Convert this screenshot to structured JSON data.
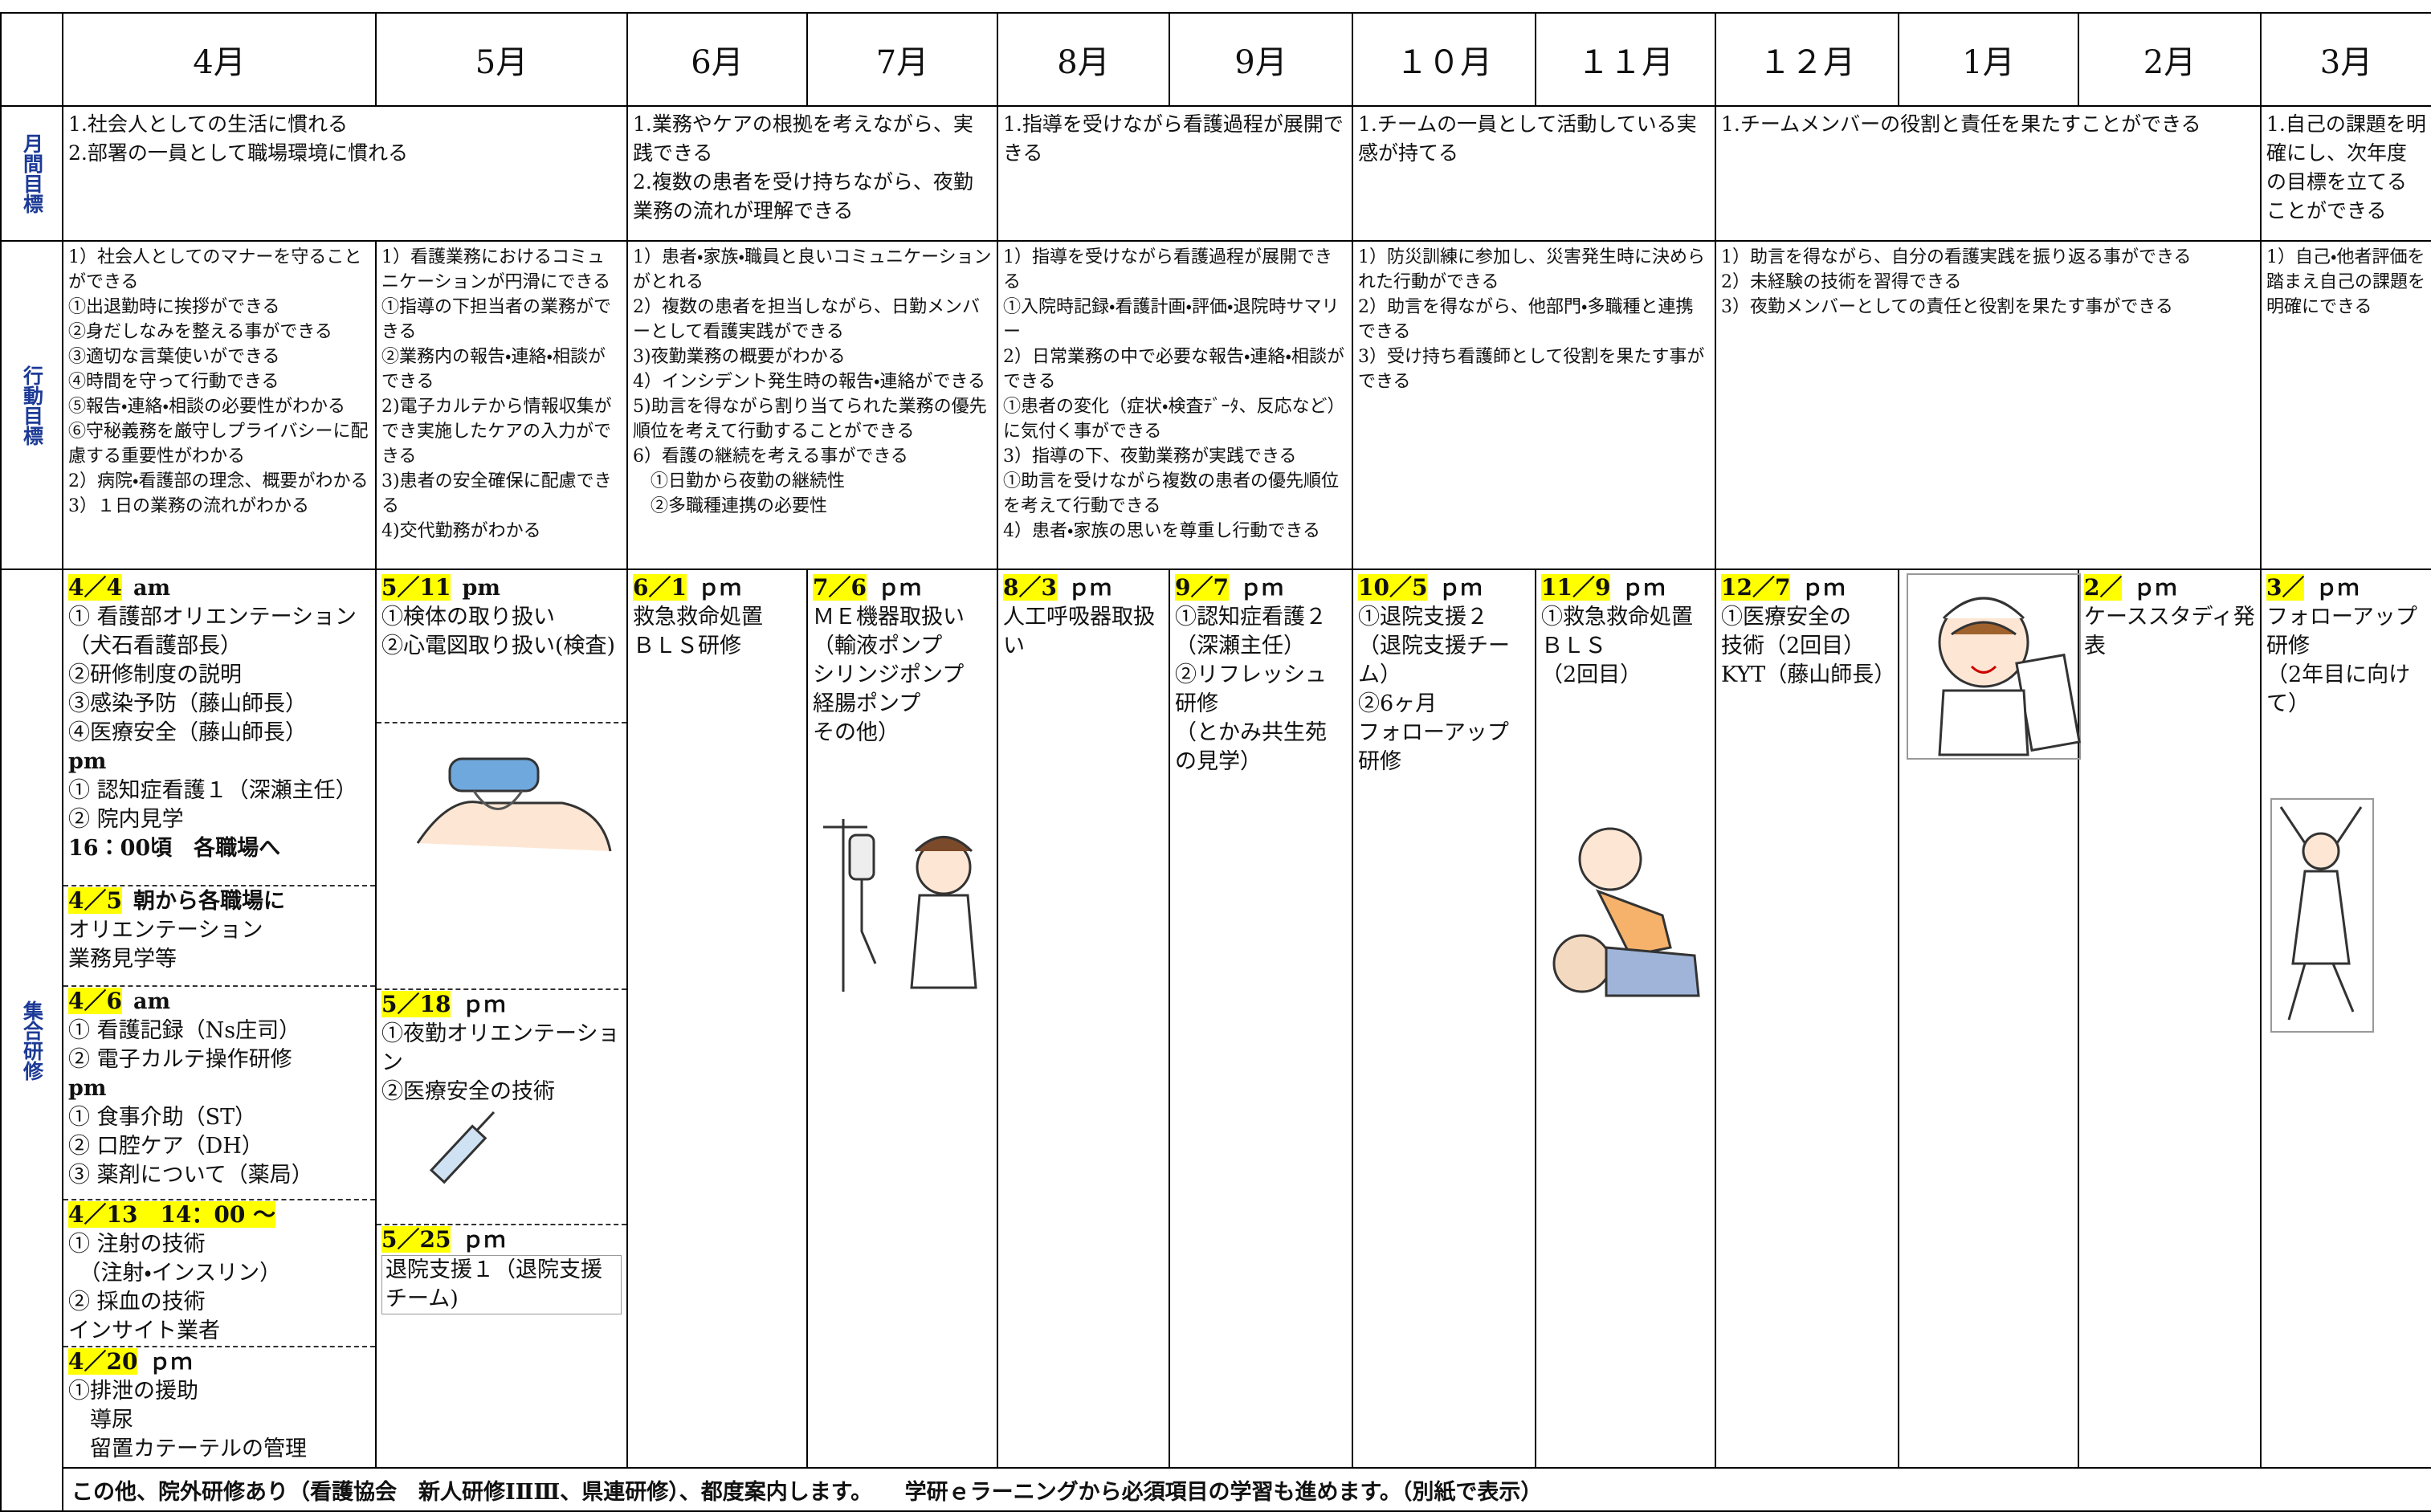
{
  "header": {
    "months": [
      "4月",
      "5月",
      "6月",
      "7月",
      "8月",
      "9月",
      "１０月",
      "１１月",
      "１２月",
      "1月",
      "2月",
      "3月"
    ]
  },
  "rows": {
    "monthly_goals": {
      "label": "月間目標",
      "cells": [
        [
          "1.社会人としての生活に慣れる",
          "2.部署の一員として職場環境に慣れる"
        ],
        [
          "1.業務やケアの根拠を考えながら、実践できる",
          "2.複数の患者を受け持ちながら、夜勤業務の流れが理解できる"
        ],
        [
          "1.指導を受けながら看護過程が展開できる"
        ],
        [
          "1.チームの一員として活動している実感が持てる"
        ],
        [
          "1.チームメンバーの役割と責任を果たすことができる"
        ],
        [
          "1.自己の課題を明確にし、次年度の目標を立てることができる"
        ]
      ]
    },
    "action_goals": {
      "label": "行動目標",
      "cells": [
        [
          "1）社会人としてのマナーを守ることができる",
          "①出退勤時に挨拶ができる",
          "②身だしなみを整える事ができる",
          "③適切な言葉使いができる",
          "④時間を守って行動できる",
          "⑤報告・連絡・相談の必要性がわかる",
          "⑥守秘義務を厳守しプライバシーに配慮する重要性がわかる",
          "2）病院・看護部の理念、概要がわかる",
          "3）１日の業務の流れがわかる"
        ],
        [
          "1）看護業務におけるコミュニケーションが円滑にできる",
          "①指導の下担当者の業務ができる",
          "②業務内の報告・連絡・相談ができる",
          "2)電子カルテから情報収集ができ実施したケアの入力ができる",
          "3)患者の安全確保に配慮できる",
          "4)交代勤務がわかる"
        ],
        [
          "1）患者・家族・職員と良いコミュニケーションがとれる",
          "2）複数の患者を担当しながら、日勤メンバーとして看護実践ができる",
          "3)夜勤業務の概要がわかる",
          "4）インシデント発生時の報告・連絡ができる",
          "5)助言を得ながら割り当てられた業務の優先順位を考えて行動することができる",
          "6）看護の継続を考える事ができる",
          "　①日勤から夜勤の継続性",
          "　②多職種連携の必要性"
        ],
        [
          "1）指導を受けながら看護過程が展開できる",
          "①入院時記録・看護計画・評価・退院時サマリー",
          "2）日常業務の中で必要な報告・連絡・相談ができる",
          "①患者の変化（症状・検査ﾃﾞｰﾀ、反応など）に気付く事ができる",
          "3）指導の下、夜勤業務が実践できる",
          "①助言を受けながら複数の患者の優先順位を考えて行動できる",
          "4）患者・家族の思いを尊重し行動できる"
        ],
        [
          "1）防災訓練に参加し、災害発生時に決められた行動ができる",
          "2）助言を得ながら、他部門・多職種と連携できる",
          "3）受け持ち看護師として役割を果たす事ができる"
        ],
        [
          "1）助言を得ながら、自分の看護実践を振り返る事ができる",
          "2）未経験の技術を習得できる",
          "3）夜勤メンバーとしての責任と役割を果たす事ができる"
        ],
        [
          "1）自己・他者評価を踏まえ自己の課題を明確にできる"
        ]
      ]
    },
    "group_training": {
      "label": "集合研修",
      "months": [
        [
          {
            "date": "4／4",
            "time": "am",
            "lines": [
              "① 看護部オリエンテーション（犬石看護部長）",
              "②研修制度の説明",
              "③感染予防（藤山師長）",
              "④医療安全（藤山師長）",
              {
                "text": "pm",
                "bold": true
              },
              "① 認知症看護１（深瀬主任）",
              "② 院内見学",
              {
                "text": "16：00頃　各職場へ",
                "bold": true
              }
            ]
          },
          {
            "date": "4／5",
            "time": "朝から各職場に",
            "lines": [
              "オリエンテーション",
              "業務見学等"
            ]
          },
          {
            "date": "4／6",
            "time": "am",
            "lines": [
              "① 看護記録（Ns庄司）",
              "② 電子カルテ操作研修",
              {
                "text": "pm",
                "bold": true
              },
              "① 食事介助（ST）",
              "② 口腔ケア（DH）",
              "③ 薬剤について（薬局）"
            ]
          },
          {
            "date": "4／13　14：00 ～",
            "lines": [
              "① 注射の技術",
              "　（注射・インスリン）",
              "② 採血の技術",
              "インサイト業者"
            ]
          },
          {
            "date": "4／20",
            "time": "ｐｍ",
            "lines": [
              "①排泄の援助",
              "　導尿",
              "　留置カテーテルの管理"
            ]
          }
        ],
        [
          {
            "date": "5／11",
            "time": "pm",
            "lines": [
              "①検体の取り扱い",
              "②心電図取り扱い(検査)"
            ]
          },
          {
            "date": "5／18",
            "time": "ｐｍ",
            "lines": [
              "①夜勤オリエンテーション",
              "②医療安全の技術"
            ]
          },
          {
            "date": "5／25",
            "time": "ｐｍ",
            "lines": [
              "退院支援１（退院支援チーム)"
            ]
          }
        ],
        [
          {
            "date": "6／1",
            "time": "ｐｍ",
            "lines": [
              "救急救命処置",
              "ＢＬＳ研修"
            ]
          }
        ],
        [
          {
            "date": "7／6",
            "time": "ｐｍ",
            "lines": [
              "ＭＥ機器取扱い",
              "（輸液ポンプ",
              "シリンジポンプ",
              "経腸ポンプ",
              "その他）"
            ]
          }
        ],
        [
          {
            "date": "8／3",
            "time": "ｐｍ",
            "lines": [
              "人工呼吸器取扱い"
            ]
          }
        ],
        [
          {
            "date": "9／7",
            "time": "ｐｍ",
            "lines": [
              "①認知症看護２",
              "（深瀬主任）",
              "②リフレッシュ研修",
              "（とかみ共生苑の見学）"
            ]
          }
        ],
        [
          {
            "date": "10／5",
            "time": "ｐｍ",
            "lines": [
              "①退院支援２",
              "（退院支援チーム）",
              "②6ヶ月",
              "フォローアップ研修"
            ]
          }
        ],
        [
          {
            "date": "11／9",
            "time": "ｐｍ",
            "lines": [
              "①救急救命処置",
              "ＢＬＳ",
              "（2回目）"
            ]
          }
        ],
        [
          {
            "date": "12／7",
            "time": "ｐｍ",
            "lines": [
              "①医療安全の",
              "技術（2回目）",
              "KYT（藤山師長）"
            ]
          }
        ],
        [],
        [
          {
            "date": "2／",
            "time": "ｐｍ",
            "lines": [
              "ケーススタディ発表"
            ]
          }
        ],
        [
          {
            "date": "3／",
            "time": "ｐｍ",
            "lines": [
              "フォローアップ研修",
              "（2年目に向けて）"
            ]
          }
        ]
      ]
    }
  },
  "footer": "この他、院外研修あり（看護協会　新人研修ⅠⅡⅢ、県連研修）、都度案内します。　　学研ｅラーニングから必須項目の学習も進めます。（別紙で表示）"
}
